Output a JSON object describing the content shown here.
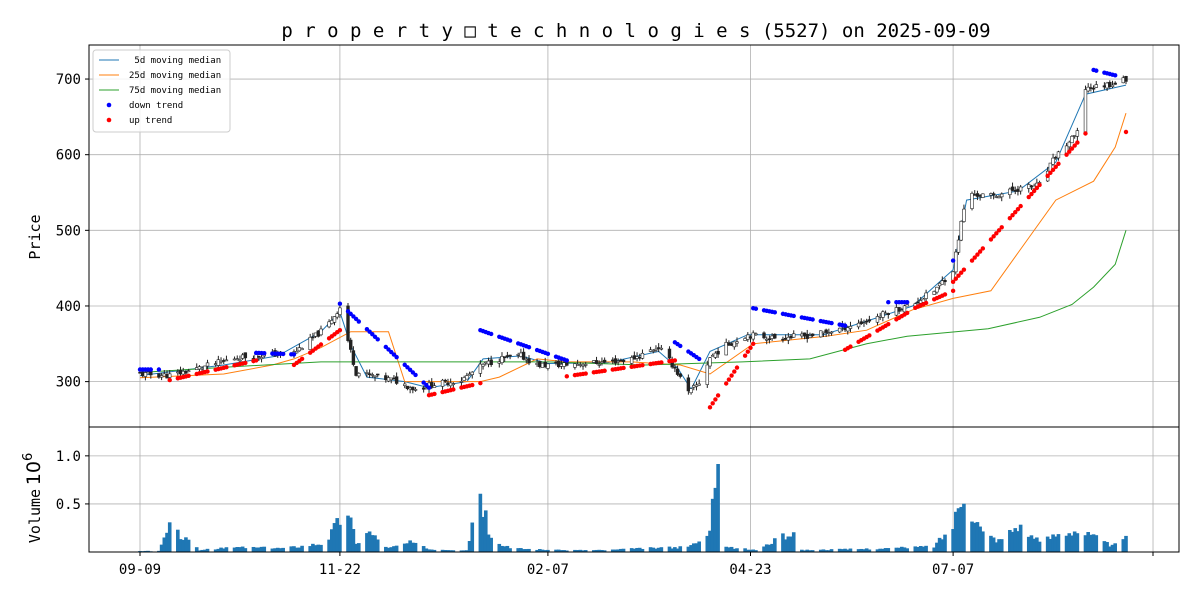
{
  "chart_data": {
    "type": "candlestick",
    "title": "p r o p e r t y □ t e c h n o l o g i e s (5527) on 2025-09-09",
    "price_panel": {
      "ylabel": "Price",
      "ylim": [
        240,
        745
      ],
      "yticks": [
        300,
        400,
        500,
        600,
        700
      ],
      "grid": true,
      "legend_position": "top-left",
      "legend": [
        {
          "label": " 5d moving median",
          "kind": "line",
          "color": "#1f77b4"
        },
        {
          "label": "25d moving median",
          "kind": "line",
          "color": "#ff7f0e"
        },
        {
          "label": "75d moving median",
          "kind": "line",
          "color": "#2ca02c"
        },
        {
          "label": "down trend",
          "kind": "dot",
          "color": "#0000ff"
        },
        {
          "label": "up trend",
          "kind": "dot",
          "color": "#ff0000"
        }
      ]
    },
    "volume_panel": {
      "ylabel": "Volume",
      "scale_label": "10",
      "scale_exponent": "6",
      "ylim": [
        0,
        1.3
      ],
      "yticks": [
        "0.5",
        "1.0"
      ],
      "bar_color": "#1f77b4",
      "grid": true
    },
    "x_ticks": [
      "09-09",
      "11-22",
      "02-07",
      "04-23",
      "07-07",
      ""
    ],
    "x_range": [
      "2024-09-09",
      "2025-09-09"
    ],
    "x_tick_dates": [
      "2024-09-09",
      "2024-11-22",
      "2025-02-07",
      "2025-04-23",
      "2025-07-07",
      "2025-09-19"
    ],
    "price_keypoints": [
      [
        "2024-09-09",
        310
      ],
      [
        "2024-09-20",
        308
      ],
      [
        "2024-10-01",
        318
      ],
      [
        "2024-10-15",
        332
      ],
      [
        "2024-10-28",
        336
      ],
      [
        "2024-11-05",
        338
      ],
      [
        "2024-11-10",
        352
      ],
      [
        "2024-11-17",
        372
      ],
      [
        "2024-11-22",
        398
      ],
      [
        "2024-11-26",
        340
      ],
      [
        "2024-11-28",
        312
      ],
      [
        "2024-12-06",
        306
      ],
      [
        "2024-12-12",
        302
      ],
      [
        "2024-12-20",
        290
      ],
      [
        "2024-12-26",
        296
      ],
      [
        "2025-01-06",
        302
      ],
      [
        "2025-01-14",
        322
      ],
      [
        "2025-01-20",
        330
      ],
      [
        "2025-01-28",
        334
      ],
      [
        "2025-02-03",
        322
      ],
      [
        "2025-02-10",
        322
      ],
      [
        "2025-02-20",
        324
      ],
      [
        "2025-03-01",
        326
      ],
      [
        "2025-03-10",
        330
      ],
      [
        "2025-03-20",
        346
      ],
      [
        "2025-03-26",
        318
      ],
      [
        "2025-03-31",
        285
      ],
      [
        "2025-04-04",
        298
      ],
      [
        "2025-04-08",
        332
      ],
      [
        "2025-04-14",
        348
      ],
      [
        "2025-04-22",
        362
      ],
      [
        "2025-05-01",
        358
      ],
      [
        "2025-05-13",
        360
      ],
      [
        "2025-05-21",
        365
      ],
      [
        "2025-05-28",
        372
      ],
      [
        "2025-06-05",
        380
      ],
      [
        "2025-06-13",
        392
      ],
      [
        "2025-06-22",
        402
      ],
      [
        "2025-06-30",
        420
      ],
      [
        "2025-07-07",
        448
      ],
      [
        "2025-07-09",
        490
      ],
      [
        "2025-07-12",
        548
      ],
      [
        "2025-07-22",
        545
      ],
      [
        "2025-07-31",
        555
      ],
      [
        "2025-08-08",
        560
      ],
      [
        "2025-08-14",
        598
      ],
      [
        "2025-08-22",
        628
      ],
      [
        "2025-08-25",
        688
      ],
      [
        "2025-08-29",
        690
      ],
      [
        "2025-09-05",
        695
      ],
      [
        "2025-09-09",
        700
      ]
    ],
    "volume_keypoints": [
      [
        "2024-09-09",
        0.01
      ],
      [
        "2024-09-16",
        0.01
      ],
      [
        "2024-09-20",
        0.26
      ],
      [
        "2024-10-01",
        0.02
      ],
      [
        "2024-10-15",
        0.05
      ],
      [
        "2024-11-01",
        0.04
      ],
      [
        "2024-11-10",
        0.07
      ],
      [
        "2024-11-17",
        0.1
      ],
      [
        "2024-11-20",
        0.26
      ],
      [
        "2024-11-25",
        0.45
      ],
      [
        "2024-11-28",
        0.08
      ],
      [
        "2024-12-02",
        0.23
      ],
      [
        "2024-12-10",
        0.04
      ],
      [
        "2024-12-18",
        0.1
      ],
      [
        "2024-12-25",
        0.03
      ],
      [
        "2025-01-08",
        0.02
      ],
      [
        "2025-01-13",
        0.59
      ],
      [
        "2025-01-17",
        0.12
      ],
      [
        "2025-01-24",
        0.04
      ],
      [
        "2025-02-10",
        0.02
      ],
      [
        "2025-03-01",
        0.02
      ],
      [
        "2025-03-15",
        0.04
      ],
      [
        "2025-03-31",
        0.05
      ],
      [
        "2025-04-08",
        0.18
      ],
      [
        "2025-04-11",
        1.22
      ],
      [
        "2025-04-14",
        0.05
      ],
      [
        "2025-04-25",
        0.02
      ],
      [
        "2025-05-09",
        0.21
      ],
      [
        "2025-05-12",
        0.02
      ],
      [
        "2025-06-01",
        0.03
      ],
      [
        "2025-06-15",
        0.04
      ],
      [
        "2025-06-30",
        0.06
      ],
      [
        "2025-07-07",
        0.28
      ],
      [
        "2025-07-11",
        0.66
      ],
      [
        "2025-07-14",
        0.42
      ],
      [
        "2025-07-18",
        0.2
      ],
      [
        "2025-07-24",
        0.12
      ],
      [
        "2025-07-31",
        0.28
      ],
      [
        "2025-08-08",
        0.1
      ],
      [
        "2025-08-14",
        0.18
      ],
      [
        "2025-08-21",
        0.23
      ],
      [
        "2025-08-28",
        0.16
      ],
      [
        "2025-09-04",
        0.06
      ],
      [
        "2025-09-09",
        0.14
      ]
    ],
    "ma5_keypoints": [
      [
        "2024-09-09",
        308
      ],
      [
        "2024-10-10",
        322
      ],
      [
        "2024-10-30",
        334
      ],
      [
        "2024-11-15",
        366
      ],
      [
        "2024-11-22",
        392
      ],
      [
        "2024-11-26",
        348
      ],
      [
        "2024-12-02",
        306
      ],
      [
        "2024-12-16",
        300
      ],
      [
        "2024-12-25",
        292
      ],
      [
        "2025-01-08",
        300
      ],
      [
        "2025-01-14",
        330
      ],
      [
        "2025-01-28",
        334
      ],
      [
        "2025-02-07",
        324
      ],
      [
        "2025-03-01",
        325
      ],
      [
        "2025-03-20",
        340
      ],
      [
        "2025-03-27",
        318
      ],
      [
        "2025-04-01",
        290
      ],
      [
        "2025-04-08",
        340
      ],
      [
        "2025-04-22",
        362
      ],
      [
        "2025-05-20",
        362
      ],
      [
        "2025-06-05",
        380
      ],
      [
        "2025-06-22",
        400
      ],
      [
        "2025-07-07",
        448
      ],
      [
        "2025-07-12",
        540
      ],
      [
        "2025-07-31",
        552
      ],
      [
        "2025-08-14",
        590
      ],
      [
        "2025-08-25",
        680
      ],
      [
        "2025-09-09",
        692
      ]
    ],
    "ma25_keypoints": [
      [
        "2024-09-09",
        305
      ],
      [
        "2024-10-10",
        310
      ],
      [
        "2024-10-28",
        322
      ],
      [
        "2024-11-05",
        330
      ],
      [
        "2024-11-15",
        345
      ],
      [
        "2024-11-26",
        366
      ],
      [
        "2024-12-10",
        366
      ],
      [
        "2024-12-16",
        300
      ],
      [
        "2025-01-13",
        300
      ],
      [
        "2025-01-20",
        306
      ],
      [
        "2025-02-03",
        330
      ],
      [
        "2025-02-14",
        326
      ],
      [
        "2025-03-10",
        326
      ],
      [
        "2025-03-28",
        322
      ],
      [
        "2025-04-08",
        310
      ],
      [
        "2025-04-24",
        350
      ],
      [
        "2025-05-21",
        360
      ],
      [
        "2025-06-05",
        368
      ],
      [
        "2025-06-22",
        395
      ],
      [
        "2025-07-07",
        410
      ],
      [
        "2025-07-21",
        420
      ],
      [
        "2025-07-31",
        470
      ],
      [
        "2025-08-14",
        540
      ],
      [
        "2025-08-28",
        565
      ],
      [
        "2025-09-05",
        610
      ],
      [
        "2025-09-09",
        655
      ]
    ],
    "ma75_keypoints": [
      [
        "2024-09-09",
        312
      ],
      [
        "2024-10-15",
        320
      ],
      [
        "2024-11-15",
        326
      ],
      [
        "2025-01-01",
        326
      ],
      [
        "2025-02-07",
        326
      ],
      [
        "2025-03-15",
        322
      ],
      [
        "2025-04-20",
        326
      ],
      [
        "2025-05-15",
        330
      ],
      [
        "2025-06-05",
        350
      ],
      [
        "2025-06-20",
        360
      ],
      [
        "2025-07-20",
        370
      ],
      [
        "2025-08-08",
        385
      ],
      [
        "2025-08-20",
        402
      ],
      [
        "2025-08-28",
        425
      ],
      [
        "2025-09-05",
        455
      ],
      [
        "2025-09-09",
        500
      ]
    ],
    "trend_segments": [
      {
        "trend": "down",
        "from": [
          "2024-09-09",
          316
        ],
        "to": [
          "2024-09-16",
          316
        ]
      },
      {
        "trend": "up",
        "from": [
          "2024-09-20",
          302
        ],
        "to": [
          "2024-10-22",
          328
        ]
      },
      {
        "trend": "down",
        "from": [
          "2024-10-22",
          338
        ],
        "to": [
          "2024-11-05",
          336
        ]
      },
      {
        "trend": "up",
        "from": [
          "2024-11-05",
          322
        ],
        "to": [
          "2024-11-22",
          368
        ]
      },
      {
        "trend": "down",
        "from": [
          "2024-11-22",
          403
        ],
        "to": [
          "2024-12-25",
          292
        ]
      },
      {
        "trend": "up",
        "from": [
          "2024-12-25",
          282
        ],
        "to": [
          "2025-01-13",
          298
        ]
      },
      {
        "trend": "down",
        "from": [
          "2025-01-13",
          368
        ],
        "to": [
          "2025-02-14",
          328
        ]
      },
      {
        "trend": "up",
        "from": [
          "2025-02-14",
          307
        ],
        "to": [
          "2025-03-26",
          328
        ]
      },
      {
        "trend": "down",
        "from": [
          "2025-03-26",
          352
        ],
        "to": [
          "2025-04-04",
          330
        ]
      },
      {
        "trend": "up",
        "from": [
          "2025-04-08",
          266
        ],
        "to": [
          "2025-04-24",
          350
        ]
      },
      {
        "trend": "down",
        "from": [
          "2025-04-24",
          397
        ],
        "to": [
          "2025-05-28",
          374
        ]
      },
      {
        "trend": "up",
        "from": [
          "2025-05-28",
          342
        ],
        "to": [
          "2025-06-22",
          395
        ]
      },
      {
        "trend": "down",
        "from": [
          "2025-06-13",
          405
        ],
        "to": [
          "2025-06-22",
          405
        ]
      },
      {
        "trend": "up",
        "from": [
          "2025-06-22",
          396
        ],
        "to": [
          "2025-07-07",
          420
        ]
      },
      {
        "trend": "down",
        "from": [
          "2025-07-05",
          458
        ],
        "to": [
          "2025-07-07",
          460
        ]
      },
      {
        "trend": "up",
        "from": [
          "2025-07-07",
          432
        ],
        "to": [
          "2025-08-25",
          628
        ]
      },
      {
        "trend": "down",
        "from": [
          "2025-08-28",
          712
        ],
        "to": [
          "2025-09-06",
          704
        ]
      },
      {
        "trend": "up",
        "from": [
          "2025-09-09",
          630
        ],
        "to": [
          "2025-09-09",
          630
        ]
      }
    ]
  }
}
